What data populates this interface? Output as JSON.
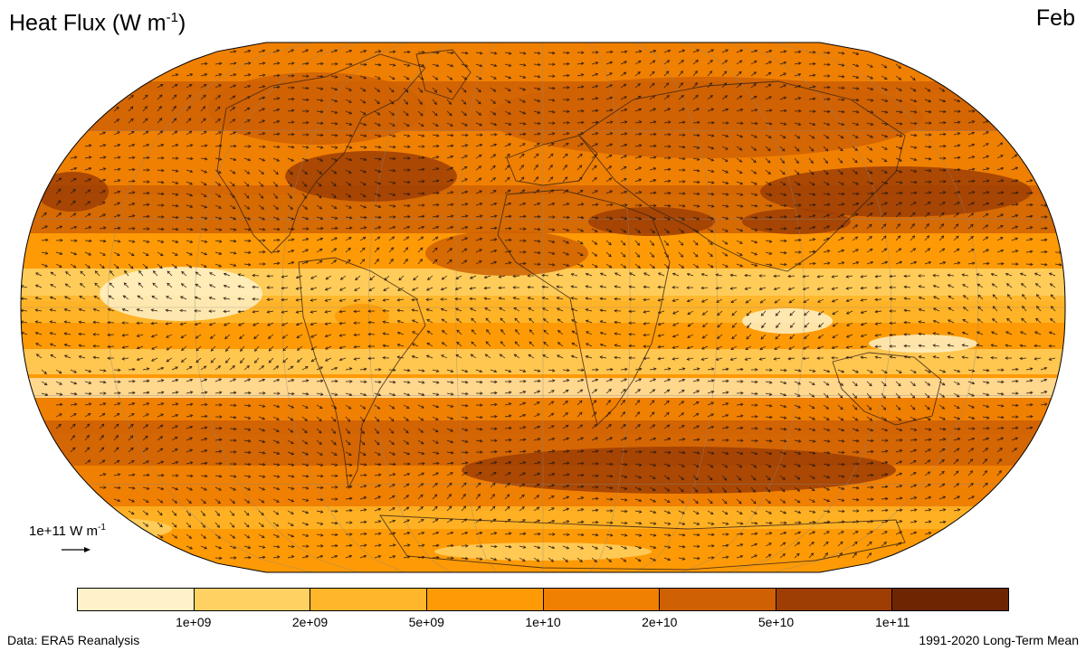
{
  "header": {
    "title_main": "Heat Flux (W m",
    "title_sup": "-1",
    "title_end": ")",
    "month": "Feb"
  },
  "reference_vector": {
    "label_main": "1e+11 W m",
    "label_sup": "-1"
  },
  "colorbar": {
    "colors": [
      "#fff1c8",
      "#ffd163",
      "#ffb62a",
      "#fd9a06",
      "#f08002",
      "#cf6104",
      "#9e3e05",
      "#6e2602"
    ],
    "tick_labels": [
      "1e+09",
      "2e+09",
      "5e+09",
      "1e+10",
      "2e+10",
      "5e+10",
      "1e+11"
    ]
  },
  "footer": {
    "source": "Data: ERA5 Reanalysis",
    "period": "1991-2020 Long-Term Mean"
  },
  "map": {
    "projection": "Robinson",
    "field": "heat flux magnitude with flux vectors",
    "gridlines": true,
    "coastlines": true
  }
}
